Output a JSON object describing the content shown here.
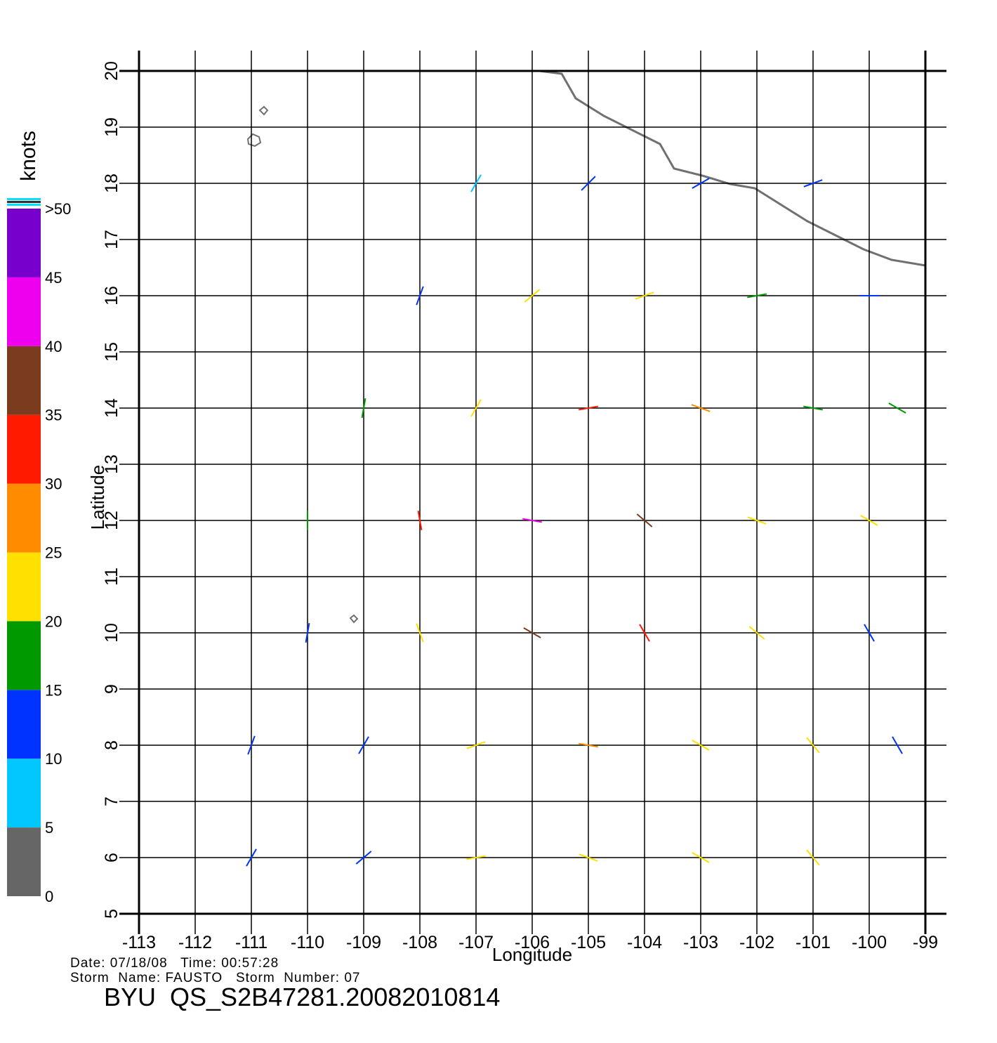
{
  "chart_data": {
    "type": "vector_field",
    "x_label": "Longitude",
    "y_label": "Latitude",
    "xlim": [
      -113,
      -99
    ],
    "ylim": [
      5,
      20
    ],
    "xticks": [
      -113,
      -112,
      -111,
      -110,
      -109,
      -108,
      -107,
      -106,
      -105,
      -104,
      -103,
      -102,
      -101,
      -100,
      -99
    ],
    "yticks": [
      5,
      6,
      7,
      8,
      9,
      10,
      11,
      12,
      13,
      14,
      15,
      16,
      17,
      18,
      19,
      20
    ],
    "grid": true,
    "colorbar": {
      "label": "knots",
      "ticks": [
        0,
        5,
        10,
        15,
        20,
        25,
        30,
        35,
        40,
        45,
        {
          "value": 50,
          "label": ">50"
        }
      ],
      "colors": [
        "#666666",
        "#00c8ff",
        "#0033ff",
        "#009a00",
        "#ffe000",
        "#ff8c00",
        "#ff1a00",
        "#7a3b1e",
        "#ee00ee",
        "#7700cc"
      ]
    },
    "wind": {
      "lon": [
        -107,
        -105,
        -103,
        -101,
        -108,
        -106,
        -104,
        -102,
        -100,
        -109,
        -107,
        -105,
        -103,
        -101,
        -99.5,
        -110,
        -108,
        -106,
        -104,
        -102,
        -100,
        -110,
        -108,
        -106,
        -104,
        -102,
        -100,
        -111,
        -109,
        -107,
        -105,
        -103,
        -101,
        -99.5,
        -111,
        -109,
        -107,
        -105,
        -103,
        -101
      ],
      "lat": [
        18,
        18,
        18,
        18,
        16,
        16,
        16,
        16,
        16,
        14,
        14,
        14,
        14,
        14,
        14,
        12,
        12,
        12,
        12,
        12,
        12,
        10,
        10,
        10,
        10,
        10,
        10,
        8,
        8,
        8,
        8,
        8,
        8,
        8,
        6,
        6,
        6,
        6,
        6,
        6
      ],
      "speed": [
        8,
        12,
        13,
        12,
        12,
        20,
        22,
        17,
        13,
        17,
        22,
        32,
        27,
        19,
        17,
        15,
        30,
        40,
        35,
        22,
        20,
        14,
        22,
        35,
        30,
        22,
        14,
        13,
        14,
        22,
        26,
        22,
        20,
        14,
        10,
        14,
        22,
        20,
        20,
        21
      ],
      "dir": [
        60,
        45,
        30,
        20,
        70,
        40,
        20,
        10,
        0,
        80,
        60,
        10,
        -20,
        -10,
        -30,
        90,
        100,
        -10,
        -40,
        -20,
        -30,
        80,
        110,
        150,
        -60,
        -40,
        -60,
        70,
        60,
        20,
        -10,
        -30,
        -50,
        -60,
        60,
        40,
        10,
        -20,
        -30,
        -50
      ]
    },
    "footer": {
      "line1": "Date: 07/18/08   Time: 00:57:28",
      "line2": "Storm  Name: FAUSTO   Storm  Number: 07",
      "line3": "BYU  QS_S2B47281.20082010814"
    }
  }
}
